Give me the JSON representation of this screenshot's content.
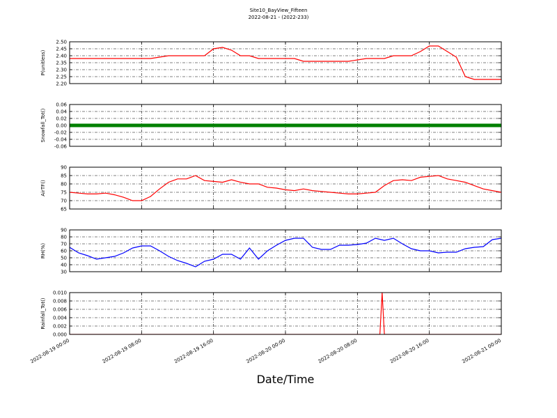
{
  "title": "Site10_BayView_Fifteen",
  "subtitle": "2022-08-21 - (2022-233)",
  "xlabel": "Date/Time",
  "chart_data": [
    {
      "type": "line",
      "ylabel": "P(unitless)",
      "color": "#ff0000",
      "x": [
        "2022-08-19 00:00",
        "2022-08-19 01:00",
        "2022-08-19 02:00",
        "2022-08-19 03:00",
        "2022-08-19 04:00",
        "2022-08-19 05:00",
        "2022-08-19 06:00",
        "2022-08-19 07:00",
        "2022-08-19 08:00",
        "2022-08-19 09:00",
        "2022-08-19 10:00",
        "2022-08-19 11:00",
        "2022-08-19 12:00",
        "2022-08-19 13:00",
        "2022-08-19 14:00",
        "2022-08-19 15:00",
        "2022-08-19 16:00",
        "2022-08-19 17:00",
        "2022-08-19 18:00",
        "2022-08-19 19:00",
        "2022-08-19 20:00",
        "2022-08-19 21:00",
        "2022-08-19 22:00",
        "2022-08-19 23:00",
        "2022-08-20 00:00",
        "2022-08-20 01:00",
        "2022-08-20 02:00",
        "2022-08-20 03:00",
        "2022-08-20 04:00",
        "2022-08-20 05:00",
        "2022-08-20 06:00",
        "2022-08-20 07:00",
        "2022-08-20 08:00",
        "2022-08-20 09:00",
        "2022-08-20 10:00",
        "2022-08-20 11:00",
        "2022-08-20 12:00",
        "2022-08-20 13:00",
        "2022-08-20 14:00",
        "2022-08-20 15:00",
        "2022-08-20 16:00",
        "2022-08-20 17:00",
        "2022-08-20 18:00",
        "2022-08-20 19:00",
        "2022-08-20 20:00",
        "2022-08-20 21:00",
        "2022-08-20 22:00",
        "2022-08-20 23:00",
        "2022-08-21 00:00"
      ],
      "values": [
        2.38,
        2.38,
        2.38,
        2.38,
        2.38,
        2.38,
        2.38,
        2.38,
        2.38,
        2.38,
        2.39,
        2.4,
        2.4,
        2.4,
        2.4,
        2.4,
        2.45,
        2.46,
        2.44,
        2.4,
        2.4,
        2.38,
        2.38,
        2.38,
        2.38,
        2.38,
        2.36,
        2.36,
        2.36,
        2.36,
        2.36,
        2.36,
        2.37,
        2.38,
        2.38,
        2.38,
        2.4,
        2.4,
        2.4,
        2.43,
        2.47,
        2.47,
        2.43,
        2.39,
        2.25,
        2.23,
        2.23,
        2.23,
        2.23
      ],
      "ylim": [
        2.2,
        2.5
      ],
      "yticks": [
        {
          "value": 2.2,
          "label": "2.20"
        },
        {
          "value": 2.25,
          "label": "2.25"
        },
        {
          "value": 2.3,
          "label": "2.30"
        },
        {
          "value": 2.35,
          "label": "2.35"
        },
        {
          "value": 2.4,
          "label": "2.40"
        },
        {
          "value": 2.45,
          "label": "2.45"
        },
        {
          "value": 2.5,
          "label": "2.50"
        }
      ],
      "xlim": [
        "2022-08-19 00:00",
        "2022-08-21 00:00"
      ],
      "xticks": [
        "2022-08-19 00:00",
        "2022-08-19 08:00",
        "2022-08-19 16:00",
        "2022-08-20 00:00",
        "2022-08-20 08:00",
        "2022-08-20 16:00",
        "2022-08-21 00:00"
      ],
      "grid": true
    },
    {
      "type": "line",
      "ylabel": "Snowfall_Tot()",
      "color": "#008000",
      "x": [
        "2022-08-19 00:00",
        "2022-08-19 01:00",
        "2022-08-19 02:00",
        "2022-08-19 03:00",
        "2022-08-19 04:00",
        "2022-08-19 05:00",
        "2022-08-19 06:00",
        "2022-08-19 07:00",
        "2022-08-19 08:00",
        "2022-08-19 09:00",
        "2022-08-19 10:00",
        "2022-08-19 11:00",
        "2022-08-19 12:00",
        "2022-08-19 13:00",
        "2022-08-19 14:00",
        "2022-08-19 15:00",
        "2022-08-19 16:00",
        "2022-08-19 17:00",
        "2022-08-19 18:00",
        "2022-08-19 19:00",
        "2022-08-19 20:00",
        "2022-08-19 21:00",
        "2022-08-19 22:00",
        "2022-08-19 23:00",
        "2022-08-20 00:00",
        "2022-08-20 01:00",
        "2022-08-20 02:00",
        "2022-08-20 03:00",
        "2022-08-20 04:00",
        "2022-08-20 05:00",
        "2022-08-20 06:00",
        "2022-08-20 07:00",
        "2022-08-20 08:00",
        "2022-08-20 09:00",
        "2022-08-20 10:00",
        "2022-08-20 11:00",
        "2022-08-20 12:00",
        "2022-08-20 13:00",
        "2022-08-20 14:00",
        "2022-08-20 15:00",
        "2022-08-20 16:00",
        "2022-08-20 17:00",
        "2022-08-20 18:00",
        "2022-08-20 19:00",
        "2022-08-20 20:00",
        "2022-08-20 21:00",
        "2022-08-20 22:00",
        "2022-08-20 23:00",
        "2022-08-21 00:00"
      ],
      "values": [
        0,
        0,
        0,
        0,
        0,
        0,
        0,
        0,
        0,
        0,
        0,
        0,
        0,
        0,
        0,
        0,
        0,
        0,
        0,
        0,
        0,
        0,
        0,
        0,
        0,
        0,
        0,
        0,
        0,
        0,
        0,
        0,
        0,
        0,
        0,
        0,
        0,
        0,
        0,
        0,
        0,
        0,
        0,
        0,
        0,
        0,
        0,
        0,
        0
      ],
      "ylim": [
        -0.06,
        0.06
      ],
      "yticks": [
        {
          "value": -0.06,
          "label": "-0.06"
        },
        {
          "value": -0.04,
          "label": "-0.04"
        },
        {
          "value": -0.02,
          "label": "-0.02"
        },
        {
          "value": 0,
          "label": "0.00"
        },
        {
          "value": 0.02,
          "label": "0.02"
        },
        {
          "value": 0.04,
          "label": "0.04"
        },
        {
          "value": 0.06,
          "label": "0.06"
        }
      ],
      "xlim": [
        "2022-08-19 00:00",
        "2022-08-21 00:00"
      ],
      "xticks": [
        "2022-08-19 00:00",
        "2022-08-19 08:00",
        "2022-08-19 16:00",
        "2022-08-20 00:00",
        "2022-08-20 08:00",
        "2022-08-20 16:00",
        "2022-08-21 00:00"
      ],
      "grid": true
    },
    {
      "type": "line",
      "ylabel": "AirTF()",
      "color": "#ff0000",
      "x": [
        "2022-08-19 00:00",
        "2022-08-19 01:00",
        "2022-08-19 02:00",
        "2022-08-19 03:00",
        "2022-08-19 04:00",
        "2022-08-19 05:00",
        "2022-08-19 06:00",
        "2022-08-19 07:00",
        "2022-08-19 08:00",
        "2022-08-19 09:00",
        "2022-08-19 10:00",
        "2022-08-19 11:00",
        "2022-08-19 12:00",
        "2022-08-19 13:00",
        "2022-08-19 14:00",
        "2022-08-19 15:00",
        "2022-08-19 16:00",
        "2022-08-19 17:00",
        "2022-08-19 18:00",
        "2022-08-19 19:00",
        "2022-08-19 20:00",
        "2022-08-19 21:00",
        "2022-08-19 22:00",
        "2022-08-19 23:00",
        "2022-08-20 00:00",
        "2022-08-20 01:00",
        "2022-08-20 02:00",
        "2022-08-20 03:00",
        "2022-08-20 04:00",
        "2022-08-20 05:00",
        "2022-08-20 06:00",
        "2022-08-20 07:00",
        "2022-08-20 08:00",
        "2022-08-20 09:00",
        "2022-08-20 10:00",
        "2022-08-20 11:00",
        "2022-08-20 12:00",
        "2022-08-20 13:00",
        "2022-08-20 14:00",
        "2022-08-20 15:00",
        "2022-08-20 16:00",
        "2022-08-20 17:00",
        "2022-08-20 18:00",
        "2022-08-20 19:00",
        "2022-08-20 20:00",
        "2022-08-20 21:00",
        "2022-08-20 22:00",
        "2022-08-20 23:00",
        "2022-08-21 00:00"
      ],
      "values": [
        75,
        74.5,
        74,
        74,
        74.5,
        73.5,
        72,
        70,
        70,
        72.5,
        77,
        81,
        83,
        83,
        85,
        82,
        81.5,
        81,
        82.5,
        81,
        80,
        80,
        78,
        77.5,
        76.5,
        76,
        77,
        76,
        75.5,
        75,
        74.5,
        74,
        74,
        74.5,
        75,
        79,
        82,
        82.5,
        82,
        84,
        84.5,
        85,
        83,
        82,
        81,
        79,
        77,
        76,
        75
      ],
      "ylim": [
        65,
        90
      ],
      "yticks": [
        65,
        70,
        75,
        80,
        85,
        90
      ],
      "xlim": [
        "2022-08-19 00:00",
        "2022-08-21 00:00"
      ],
      "xticks": [
        "2022-08-19 00:00",
        "2022-08-19 08:00",
        "2022-08-19 16:00",
        "2022-08-20 00:00",
        "2022-08-20 08:00",
        "2022-08-20 16:00",
        "2022-08-21 00:00"
      ],
      "grid": true
    },
    {
      "type": "line",
      "ylabel": "RH(%)",
      "color": "#0000ff",
      "x": [
        "2022-08-19 00:00",
        "2022-08-19 01:00",
        "2022-08-19 02:00",
        "2022-08-19 03:00",
        "2022-08-19 04:00",
        "2022-08-19 05:00",
        "2022-08-19 06:00",
        "2022-08-19 07:00",
        "2022-08-19 08:00",
        "2022-08-19 09:00",
        "2022-08-19 10:00",
        "2022-08-19 11:00",
        "2022-08-19 12:00",
        "2022-08-19 13:00",
        "2022-08-19 14:00",
        "2022-08-19 15:00",
        "2022-08-19 16:00",
        "2022-08-19 17:00",
        "2022-08-19 18:00",
        "2022-08-19 19:00",
        "2022-08-19 20:00",
        "2022-08-19 21:00",
        "2022-08-19 22:00",
        "2022-08-19 23:00",
        "2022-08-20 00:00",
        "2022-08-20 01:00",
        "2022-08-20 02:00",
        "2022-08-20 03:00",
        "2022-08-20 04:00",
        "2022-08-20 05:00",
        "2022-08-20 06:00",
        "2022-08-20 07:00",
        "2022-08-20 08:00",
        "2022-08-20 09:00",
        "2022-08-20 10:00",
        "2022-08-20 11:00",
        "2022-08-20 12:00",
        "2022-08-20 13:00",
        "2022-08-20 14:00",
        "2022-08-20 15:00",
        "2022-08-20 16:00",
        "2022-08-20 17:00",
        "2022-08-20 18:00",
        "2022-08-20 19:00",
        "2022-08-20 20:00",
        "2022-08-20 21:00",
        "2022-08-20 22:00",
        "2022-08-20 23:00",
        "2022-08-21 00:00"
      ],
      "values": [
        65,
        57,
        53,
        48,
        50,
        52,
        57,
        64,
        67,
        67,
        60,
        52,
        46,
        42,
        37,
        45,
        48,
        55,
        55,
        48,
        64,
        48,
        60,
        68,
        75,
        78,
        78,
        65,
        62,
        62,
        68,
        68,
        69,
        71,
        78,
        75,
        78,
        70,
        63,
        60,
        60,
        57,
        58,
        58,
        63,
        65,
        66,
        76,
        78
      ],
      "ylim": [
        30,
        90
      ],
      "yticks": [
        30,
        40,
        50,
        60,
        70,
        80,
        90
      ],
      "xlim": [
        "2022-08-19 00:00",
        "2022-08-21 00:00"
      ],
      "xticks": [
        "2022-08-19 00:00",
        "2022-08-19 08:00",
        "2022-08-19 16:00",
        "2022-08-20 00:00",
        "2022-08-20 08:00",
        "2022-08-20 16:00",
        "2022-08-21 00:00"
      ],
      "grid": true
    },
    {
      "type": "line",
      "ylabel": "Rainfall_Tot()",
      "color": "#ff0000",
      "x": [
        "2022-08-19 00:00",
        "2022-08-20 10:30",
        "2022-08-20 10:45",
        "2022-08-20 11:00",
        "2022-08-21 00:00"
      ],
      "values": [
        0,
        0,
        0.01,
        0,
        0
      ],
      "ylim": [
        0,
        0.01
      ],
      "yticks": [
        {
          "value": 0,
          "label": "0.000"
        },
        {
          "value": 0.002,
          "label": "0.002"
        },
        {
          "value": 0.004,
          "label": "0.004"
        },
        {
          "value": 0.006,
          "label": "0.006"
        },
        {
          "value": 0.008,
          "label": "0.008"
        },
        {
          "value": 0.01,
          "label": "0.010"
        }
      ],
      "xlim": [
        "2022-08-19 00:00",
        "2022-08-21 00:00"
      ],
      "xticks": [
        "2022-08-19 00:00",
        "2022-08-19 08:00",
        "2022-08-19 16:00",
        "2022-08-20 00:00",
        "2022-08-20 08:00",
        "2022-08-20 16:00",
        "2022-08-21 00:00"
      ],
      "grid": true
    }
  ]
}
